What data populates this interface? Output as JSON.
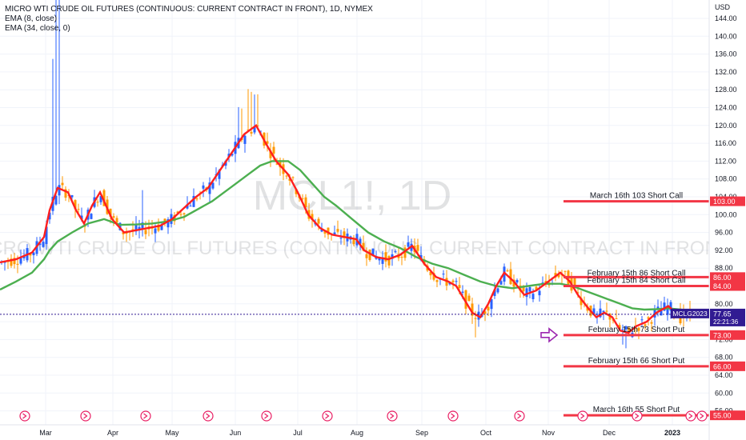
{
  "header": {
    "title": "MICRO WTI CRUDE OIL FUTURES (CONTINUOUS: CURRENT CONTRACT IN FRONT), 1D, NYMEX",
    "ema1": "EMA (8, close)",
    "ema2": "EMA (34, close, 0)"
  },
  "watermark": {
    "symbol": "MCL1!, 1D",
    "name": "MICRO WTI CRUDE OIL FUTURES (CONTINUOUS: CURRENT CONTRACT IN FRONT)"
  },
  "price_axis": {
    "currency": "USD"
  },
  "colors": {
    "up": "#2962ff",
    "down": "#ff9800",
    "ema_fast": "#ff1f1f",
    "ema_slow": "#4caf50",
    "level": "#f23645",
    "badge": "#311b92",
    "arrow": "#9c27b0"
  },
  "chart_data": {
    "type": "candlestick",
    "title": "MICRO WTI CRUDE OIL FUTURES (CONTINUOUS: CURRENT CONTRACT IN FRONT), 1D, NYMEX",
    "ylim": [
      52,
      146
    ],
    "y_ticks": [
      "56.00",
      "60.00",
      "64.00",
      "68.00",
      "72.00",
      "76.00",
      "80.00",
      "84.00",
      "88.00",
      "92.00",
      "96.00",
      "100.00",
      "104.00",
      "108.00",
      "112.00",
      "116.00",
      "120.00",
      "124.00",
      "128.00",
      "132.00",
      "136.00",
      "140.00",
      "144.00"
    ],
    "x_months": [
      "Mar",
      "Apr",
      "May",
      "Jun",
      "Jul",
      "Aug",
      "Sep",
      "Oct",
      "Nov",
      "Dec",
      "2023"
    ],
    "last_price": {
      "symbol": "MCLG2023",
      "price": "77.65",
      "countdown": "22:21:36",
      "value": 77.65
    },
    "levels": [
      {
        "label": "March 16th 103 Short Call",
        "value": 103.0,
        "price_label": "103.00"
      },
      {
        "label": "February 15th 86 Short Call",
        "value": 86.0,
        "price_label": "86.00"
      },
      {
        "label": "February 15th 84 Short Call",
        "value": 84.0,
        "price_label": "84.00"
      },
      {
        "label": "February 15th 73 Short Put",
        "value": 73.0,
        "price_label": "73.00"
      },
      {
        "label": "February 15th 66 Short Put",
        "value": 66.0,
        "price_label": "66.00"
      },
      {
        "label": "March 16th 55 Short Put",
        "value": 55.0,
        "price_label": "55.00"
      }
    ],
    "ema8": [
      [
        0,
        89.3
      ],
      [
        20,
        90
      ],
      [
        40,
        91.5
      ],
      [
        55,
        95
      ],
      [
        62,
        101
      ],
      [
        72,
        106
      ],
      [
        85,
        105
      ],
      [
        95,
        101
      ],
      [
        105,
        98
      ],
      [
        115,
        102
      ],
      [
        125,
        105
      ],
      [
        140,
        99
      ],
      [
        155,
        96
      ],
      [
        170,
        96.5
      ],
      [
        185,
        97
      ],
      [
        200,
        97.5
      ],
      [
        215,
        99
      ],
      [
        230,
        101.5
      ],
      [
        245,
        104
      ],
      [
        260,
        106
      ],
      [
        275,
        110
      ],
      [
        290,
        114
      ],
      [
        305,
        118
      ],
      [
        320,
        120
      ],
      [
        332,
        116
      ],
      [
        345,
        112
      ],
      [
        360,
        109
      ],
      [
        372,
        105
      ],
      [
        385,
        100
      ],
      [
        400,
        97
      ],
      [
        415,
        95.5
      ],
      [
        430,
        95
      ],
      [
        445,
        94.5
      ],
      [
        455,
        92
      ],
      [
        470,
        90.5
      ],
      [
        485,
        90
      ],
      [
        500,
        91
      ],
      [
        515,
        93
      ],
      [
        530,
        89
      ],
      [
        545,
        86
      ],
      [
        560,
        85
      ],
      [
        570,
        84
      ],
      [
        580,
        81
      ],
      [
        590,
        78
      ],
      [
        600,
        77
      ],
      [
        610,
        80
      ],
      [
        620,
        84
      ],
      [
        630,
        87
      ],
      [
        642,
        85
      ],
      [
        655,
        82
      ],
      [
        670,
        83
      ],
      [
        685,
        85
      ],
      [
        700,
        87
      ],
      [
        712,
        85
      ],
      [
        722,
        82
      ],
      [
        735,
        79
      ],
      [
        745,
        77
      ],
      [
        755,
        78
      ],
      [
        765,
        77
      ],
      [
        775,
        74
      ],
      [
        785,
        73.5
      ],
      [
        795,
        75
      ],
      [
        808,
        76
      ],
      [
        820,
        78
      ],
      [
        835,
        79.5
      ],
      [
        850,
        77
      ],
      [
        866,
        77.6
      ]
    ],
    "ema34": [
      [
        0,
        83.2
      ],
      [
        20,
        85
      ],
      [
        40,
        87
      ],
      [
        55,
        90
      ],
      [
        62,
        92
      ],
      [
        72,
        94
      ],
      [
        90,
        96
      ],
      [
        110,
        98
      ],
      [
        130,
        99
      ],
      [
        150,
        97.7
      ],
      [
        170,
        97.8
      ],
      [
        190,
        98
      ],
      [
        210,
        98.5
      ],
      [
        230,
        99.5
      ],
      [
        250,
        101.5
      ],
      [
        265,
        103
      ],
      [
        280,
        105
      ],
      [
        295,
        107
      ],
      [
        310,
        109
      ],
      [
        325,
        111
      ],
      [
        340,
        112
      ],
      [
        360,
        112
      ],
      [
        375,
        110
      ],
      [
        390,
        107
      ],
      [
        405,
        104
      ],
      [
        420,
        102
      ],
      [
        440,
        99
      ],
      [
        460,
        96
      ],
      [
        480,
        94
      ],
      [
        500,
        92.5
      ],
      [
        520,
        90.5
      ],
      [
        540,
        89
      ],
      [
        560,
        88
      ],
      [
        580,
        86.5
      ],
      [
        600,
        85
      ],
      [
        620,
        84
      ],
      [
        640,
        83.5
      ],
      [
        660,
        84
      ],
      [
        680,
        84.5
      ],
      [
        700,
        84.5
      ],
      [
        715,
        84
      ],
      [
        730,
        83
      ],
      [
        745,
        82
      ],
      [
        760,
        81
      ],
      [
        775,
        80
      ],
      [
        790,
        79
      ],
      [
        805,
        78.7
      ],
      [
        820,
        78.8
      ],
      [
        835,
        79
      ],
      [
        850,
        78.7
      ],
      [
        866,
        78.4
      ]
    ]
  }
}
